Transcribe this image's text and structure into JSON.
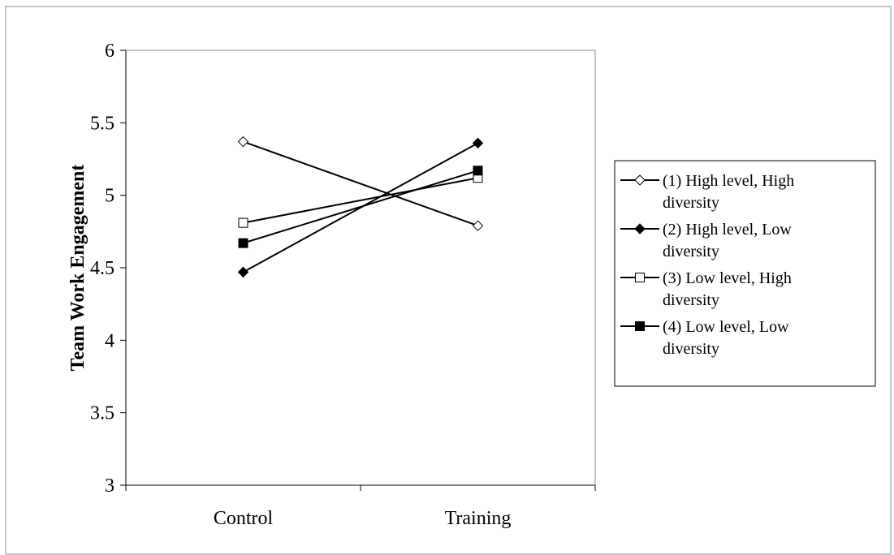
{
  "chart_data": {
    "type": "line",
    "title": "",
    "xlabel": "",
    "ylabel": "Team Work Engagement",
    "categories": [
      "Control",
      "Training"
    ],
    "ylim": [
      3,
      6
    ],
    "yticks": [
      "3",
      "3.5",
      "4",
      "4.5",
      "5",
      "5.5",
      "6"
    ],
    "grid": false,
    "legend_position": "right",
    "series": [
      {
        "name": "(1) High level, High diversity",
        "name_lines": [
          "(1) High level, High",
          "diversity"
        ],
        "marker": "diamond",
        "filled": false,
        "values": [
          5.37,
          4.79
        ]
      },
      {
        "name": "(2) High level, Low diversity",
        "name_lines": [
          "(2) High level, Low",
          "diversity"
        ],
        "marker": "diamond",
        "filled": true,
        "values": [
          4.47,
          5.36
        ]
      },
      {
        "name": "(3) Low level, High diversity",
        "name_lines": [
          "(3) Low level, High",
          "diversity"
        ],
        "marker": "square",
        "filled": false,
        "values": [
          4.81,
          5.12
        ]
      },
      {
        "name": "(4) Low level, Low diversity",
        "name_lines": [
          "(4) Low level, Low",
          "diversity"
        ],
        "marker": "square",
        "filled": true,
        "values": [
          4.67,
          5.17
        ]
      }
    ]
  }
}
